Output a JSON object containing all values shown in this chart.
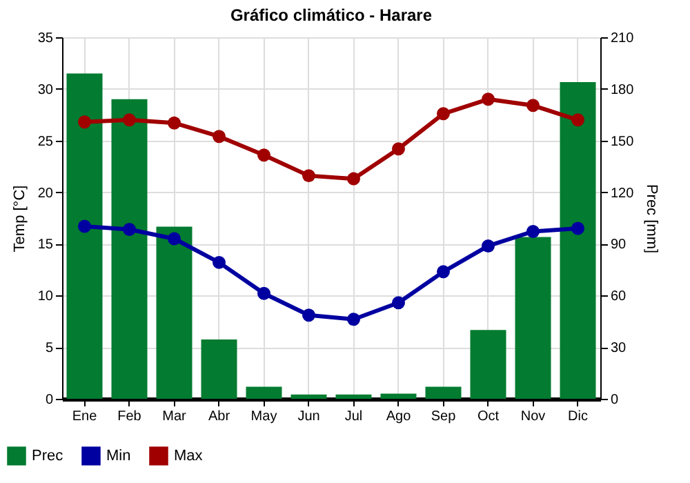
{
  "chart_data": {
    "type": "line",
    "title": "Gráfico climático - Harare",
    "categories": [
      "Ene",
      "Feb",
      "Mar",
      "Abr",
      "May",
      "Jun",
      "Jul",
      "Ago",
      "Sep",
      "Oct",
      "Nov",
      "Dic"
    ],
    "ylabel": "Temp [°C]",
    "y2label": "Prec [mm]",
    "ylim": [
      0,
      35
    ],
    "yticks": [
      0,
      5,
      10,
      15,
      20,
      25,
      30,
      35
    ],
    "y2lim": [
      0,
      210
    ],
    "y2ticks": [
      0,
      30,
      60,
      90,
      120,
      150,
      180,
      210
    ],
    "series": [
      {
        "name": "Prec",
        "type": "bar",
        "axis": "y2",
        "color": "#037b30",
        "values": [
          189,
          174,
          100,
          34.5,
          7,
          2.5,
          2.5,
          3,
          7,
          40,
          94,
          184
        ]
      },
      {
        "name": "Min",
        "color": "#0000a0",
        "values": [
          16.7,
          16.4,
          15.5,
          13.2,
          10.2,
          8.1,
          7.7,
          9.3,
          12.3,
          14.8,
          16.2,
          16.5
        ]
      },
      {
        "name": "Max",
        "color": "#a00000",
        "values": [
          26.8,
          27.0,
          26.7,
          25.4,
          23.6,
          21.6,
          21.3,
          24.2,
          27.6,
          29.0,
          28.4,
          27.0
        ]
      }
    ],
    "grid": true,
    "legend": "bottom left",
    "marker": "circle",
    "line_style": "solid"
  }
}
